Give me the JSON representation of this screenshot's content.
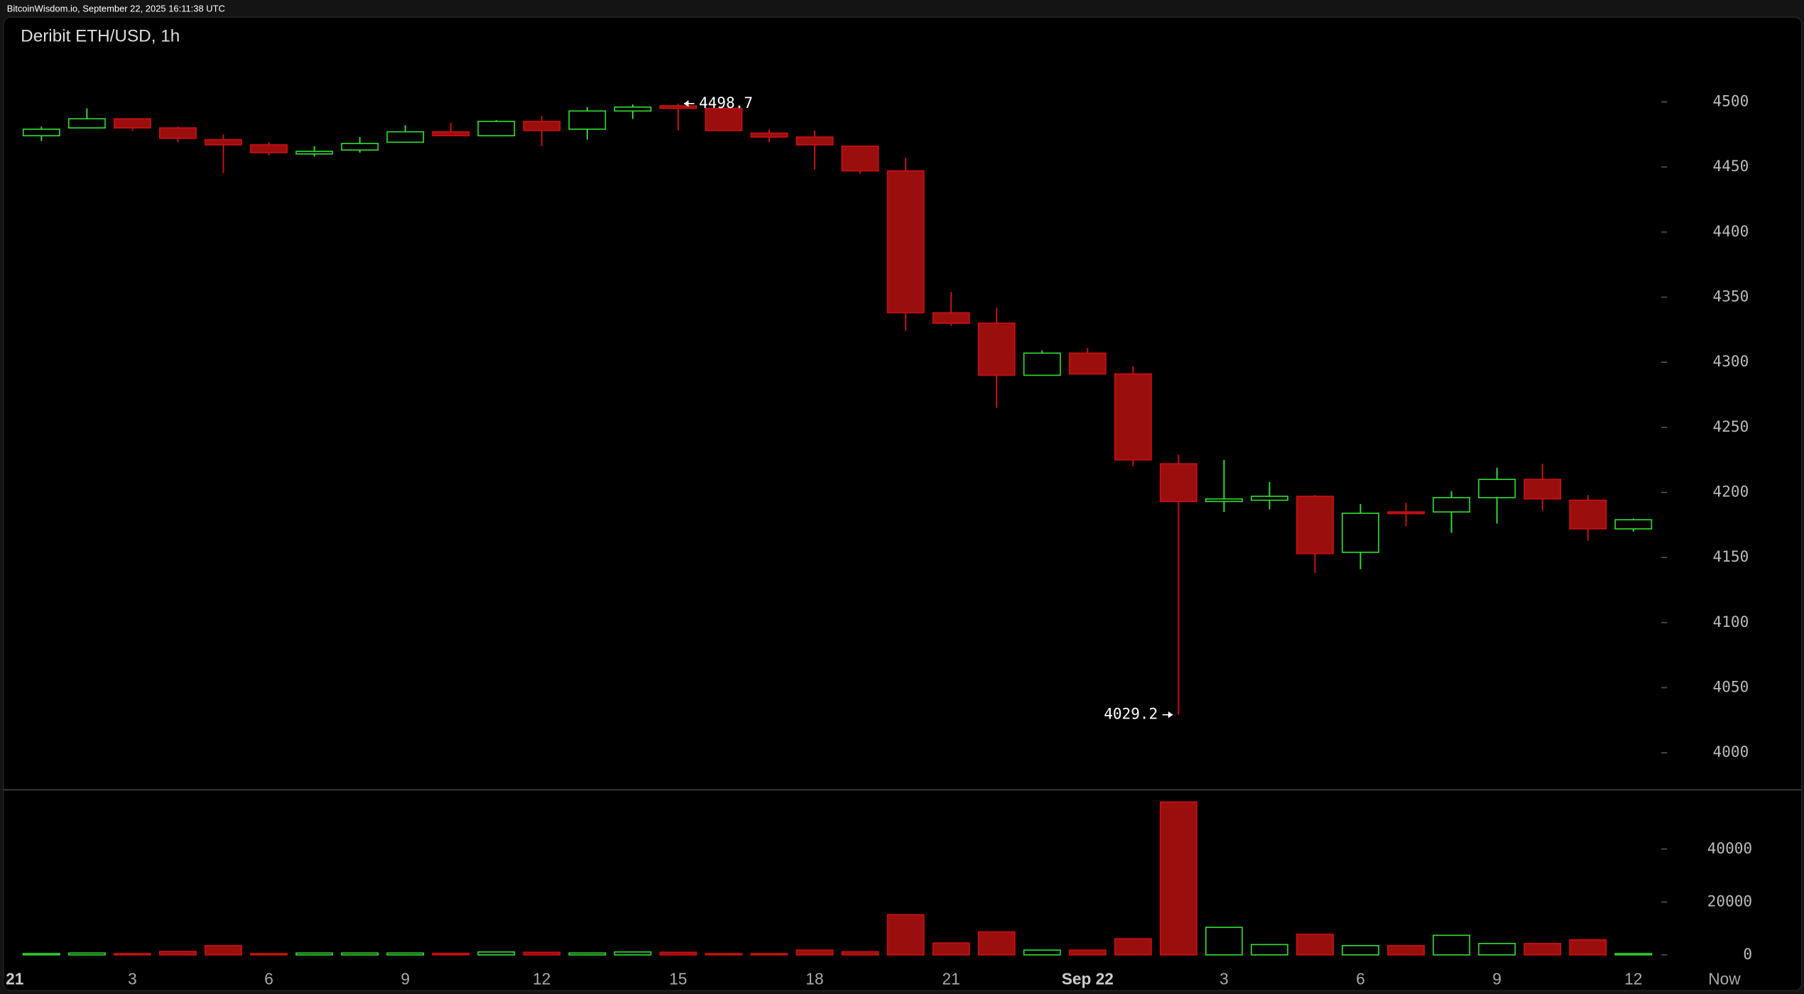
{
  "chart_data": {
    "type": "candlestick",
    "source": "BitcoinWisdom.io, September 22, 2025 16:11:38 UTC",
    "title": "Deribit ETH/USD, 1h",
    "up_color": "#33dd33",
    "down_color": "#9b0e0e",
    "x": [
      1,
      2,
      3,
      4,
      5,
      6,
      7,
      8,
      9,
      10,
      11,
      12,
      13,
      14,
      15,
      16,
      17,
      18,
      19,
      20,
      21,
      22,
      23,
      24,
      25,
      26,
      27,
      28,
      29,
      30,
      31,
      32,
      33,
      34,
      35,
      36
    ],
    "open": [
      4474,
      4480,
      4487,
      4480,
      4471,
      4467,
      4460,
      4463,
      4469,
      4477,
      4474,
      4485,
      4479,
      4493,
      4497,
      4495,
      4476,
      4473,
      4466,
      4447,
      4338,
      4330,
      4290,
      4307,
      4291,
      4222,
      4193,
      4194,
      4197,
      4154,
      4185,
      4185,
      4196,
      4210,
      4194,
      4172
    ],
    "high": [
      4481,
      4495,
      4487,
      4481,
      4475,
      4469,
      4466,
      4473,
      4482,
      4484,
      4486,
      4489,
      4496,
      4498,
      4498.7,
      4495,
      4479,
      4478,
      4466,
      4457,
      4354,
      4342,
      4309,
      4311,
      4297,
      4229,
      4225,
      4208,
      4198,
      4191,
      4192,
      4201,
      4219,
      4222,
      4198,
      4180
    ],
    "low": [
      4470,
      4480,
      4478,
      4469,
      4445,
      4459,
      4458,
      4461,
      4469,
      4474,
      4474,
      4466,
      4471,
      4487,
      4478,
      4478,
      4469,
      4448,
      4445,
      4324,
      4328,
      4265,
      4290,
      4291,
      4220,
      4029.2,
      4185,
      4187,
      4138,
      4141,
      4174,
      4169,
      4176,
      4186,
      4163,
      4170
    ],
    "close": [
      4479,
      4487,
      4480,
      4472,
      4467,
      4461,
      4462,
      4468,
      4477,
      4474,
      4485,
      4478,
      4493,
      4496,
      4495,
      4478,
      4473,
      4467,
      4447,
      4338,
      4330,
      4290,
      4307,
      4291,
      4225,
      4193,
      4195,
      4197,
      4153,
      4184,
      4184,
      4196,
      4210,
      4195,
      4172,
      4179
    ],
    "volume": [
      500,
      700,
      500,
      1300,
      3500,
      500,
      700,
      700,
      700,
      600,
      1100,
      1000,
      700,
      1100,
      1000,
      500,
      500,
      1800,
      1200,
      15200,
      4500,
      8700,
      1800,
      1800,
      6100,
      57800,
      10400,
      3900,
      7800,
      3500,
      3500,
      7400,
      4300,
      4300,
      5700,
      500
    ],
    "xlim": [
      0.165,
      39.7
    ],
    "xticks": [
      {
        "value": 0,
        "label": "21"
      },
      3,
      6,
      9,
      12,
      15,
      18,
      21,
      {
        "value": 24,
        "label": "Sep 22"
      },
      {
        "value": 27,
        "label": "3"
      },
      {
        "value": 30,
        "label": "6"
      },
      {
        "value": 33,
        "label": "9"
      },
      {
        "value": 36,
        "label": "12"
      },
      {
        "value": 38,
        "label": "Now"
      }
    ],
    "ylim": [
      3972,
      4565
    ],
    "yticks": [
      4000,
      4050,
      4100,
      4150,
      4200,
      4250,
      4300,
      4350,
      4400,
      4450,
      4500
    ],
    "volume_ylim": [
      -4350,
      62170
    ],
    "volume_yticks": [
      0,
      20000,
      40000
    ]
  }
}
